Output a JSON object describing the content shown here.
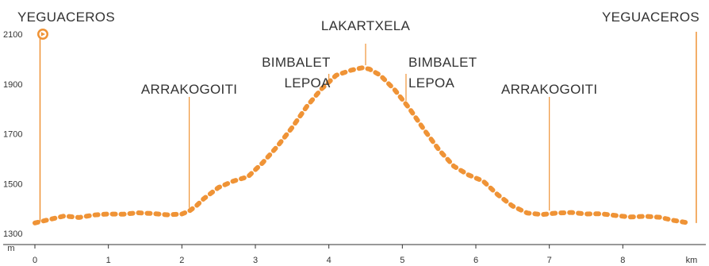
{
  "chart_data": {
    "type": "line",
    "title": "",
    "xlabel": "km",
    "ylabel": "m",
    "xlim": [
      0,
      9
    ],
    "ylim": [
      1300,
      2150
    ],
    "x_ticks": [
      0,
      1,
      2,
      3,
      4,
      5,
      6,
      7,
      8
    ],
    "x_tick_labels": [
      "0",
      "1",
      "2",
      "3",
      "4",
      "5",
      "6",
      "7",
      "8"
    ],
    "y_ticks": [
      1300,
      1500,
      1700,
      1900,
      2100
    ],
    "y_tick_labels": [
      "1300",
      "1500",
      "1700",
      "1900",
      "2100"
    ],
    "grid": false,
    "line_style": "dotted",
    "series": [
      {
        "x": [
          0,
          0.2,
          0.4,
          0.6,
          0.8,
          1.0,
          1.2,
          1.4,
          1.6,
          1.8,
          2.0,
          2.1,
          2.2,
          2.3,
          2.5,
          2.7,
          2.9,
          3.1,
          3.3,
          3.5,
          3.7,
          3.9,
          4.1,
          4.3,
          4.45,
          4.55,
          4.7,
          4.9,
          5.1,
          5.3,
          5.5,
          5.7,
          5.9,
          6.1,
          6.3,
          6.5,
          6.7,
          6.9,
          7.1,
          7.3,
          7.5,
          7.7,
          7.9,
          8.1,
          8.3,
          8.5,
          8.7,
          8.9
        ],
        "y": [
          1342,
          1356,
          1370,
          1364,
          1374,
          1378,
          1377,
          1383,
          1380,
          1375,
          1378,
          1390,
          1412,
          1440,
          1485,
          1510,
          1528,
          1584,
          1650,
          1725,
          1810,
          1880,
          1935,
          1955,
          1965,
          1960,
          1935,
          1875,
          1800,
          1715,
          1635,
          1570,
          1535,
          1510,
          1455,
          1410,
          1382,
          1376,
          1382,
          1384,
          1378,
          1379,
          1372,
          1366,
          1369,
          1365,
          1352,
          1342
        ]
      }
    ],
    "waypoints": [
      {
        "x": 0.07,
        "label": [
          "YEGUACEROS"
        ],
        "start_marker": true
      },
      {
        "x": 2.1,
        "label": [
          "ARRAKOGOITI"
        ]
      },
      {
        "x": 4.0,
        "label": [
          "BIMBALET",
          "LEPOA"
        ]
      },
      {
        "x": 4.5,
        "label": [
          "LAKARTXELA"
        ]
      },
      {
        "x": 5.05,
        "label": [
          "BIMBALET",
          "LEPOA"
        ]
      },
      {
        "x": 7.0,
        "label": [
          "ARRAKOGOITI"
        ]
      },
      {
        "x": 9.0,
        "label": [
          "YEGUACEROS"
        ]
      }
    ],
    "colors": {
      "line": "#ef9336",
      "marker": "#ef9336",
      "axis": "#333333",
      "text": "#333333"
    }
  }
}
